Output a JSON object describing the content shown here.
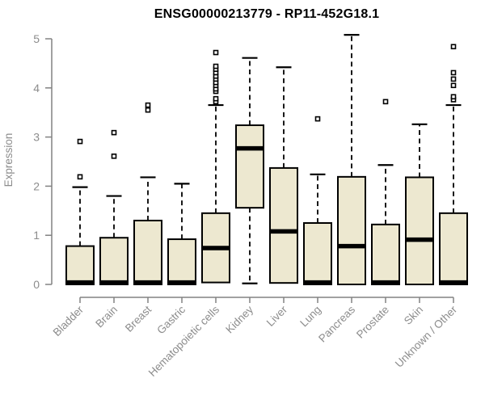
{
  "chart_data": {
    "type": "boxplot",
    "title": "ENSG00000213779 - RP11-452G18.1",
    "ylabel": "Expression",
    "xlabel": "",
    "ylim": [
      0,
      5
    ],
    "yticks": [
      0,
      1,
      2,
      3,
      4,
      5
    ],
    "grid": false,
    "legend": "none",
    "categories": [
      "Bladder",
      "Brain",
      "Breast",
      "Gastric",
      "Hematopoietic cells",
      "Kidney",
      "Liver",
      "Lung",
      "Pancreas",
      "Prostate",
      "Skin",
      "Unknown / Other"
    ],
    "boxes": [
      {
        "category": "Bladder",
        "whisker_low": 0,
        "q1": 0,
        "median": 0.04,
        "q3": 0.78,
        "whisker_high": 1.98,
        "outliers": [
          2.19,
          2.91
        ]
      },
      {
        "category": "Brain",
        "whisker_low": 0,
        "q1": 0,
        "median": 0.04,
        "q3": 0.95,
        "whisker_high": 1.8,
        "outliers": [
          2.61,
          3.09
        ]
      },
      {
        "category": "Breast",
        "whisker_low": 0,
        "q1": 0,
        "median": 0.04,
        "q3": 1.3,
        "whisker_high": 2.18,
        "outliers": [
          3.55,
          3.65
        ]
      },
      {
        "category": "Gastric",
        "whisker_low": 0,
        "q1": 0,
        "median": 0.04,
        "q3": 0.92,
        "whisker_high": 2.05,
        "outliers": []
      },
      {
        "category": "Hematopoietic cells",
        "whisker_low": 0.04,
        "q1": 0.04,
        "median": 0.74,
        "q3": 1.45,
        "whisker_high": 3.65,
        "outliers": [
          3.72,
          3.78,
          3.93,
          3.98,
          4.05,
          4.11,
          4.18,
          4.24,
          4.31,
          4.38,
          4.44,
          4.72
        ]
      },
      {
        "category": "Kidney",
        "whisker_low": 0.02,
        "q1": 1.56,
        "median": 2.77,
        "q3": 3.24,
        "whisker_high": 4.61,
        "outliers": []
      },
      {
        "category": "Liver",
        "whisker_low": 0.03,
        "q1": 0.03,
        "median": 1.08,
        "q3": 2.37,
        "whisker_high": 4.42,
        "outliers": []
      },
      {
        "category": "Lung",
        "whisker_low": 0,
        "q1": 0,
        "median": 0.04,
        "q3": 1.25,
        "whisker_high": 2.24,
        "outliers": [
          3.37
        ]
      },
      {
        "category": "Pancreas",
        "whisker_low": 0,
        "q1": 0,
        "median": 0.78,
        "q3": 2.19,
        "whisker_high": 5.08,
        "outliers": []
      },
      {
        "category": "Prostate",
        "whisker_low": 0,
        "q1": 0,
        "median": 0.04,
        "q3": 1.22,
        "whisker_high": 2.43,
        "outliers": [
          3.72
        ]
      },
      {
        "category": "Skin",
        "whisker_low": 0,
        "q1": 0,
        "median": 0.91,
        "q3": 2.18,
        "whisker_high": 3.26,
        "outliers": []
      },
      {
        "category": "Unknown / Other",
        "whisker_low": 0,
        "q1": 0,
        "median": 0.04,
        "q3": 1.45,
        "whisker_high": 3.65,
        "outliers": [
          3.76,
          3.82,
          4.05,
          4.18,
          4.31,
          4.84
        ]
      }
    ],
    "colors": {
      "box_fill": "#ede8d0",
      "box_border": "#000000",
      "median": "#000000",
      "axis": "#828282",
      "tick_label": "#8c8c8c",
      "title": "#000000",
      "background": "#ffffff"
    }
  }
}
